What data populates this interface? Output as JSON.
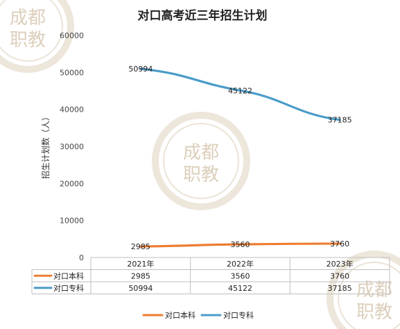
{
  "chart_data": {
    "type": "line",
    "title": "对口高考近三年招生计划",
    "ylabel": "招生计划数（人）",
    "xlabel": "",
    "ylim": [
      0,
      60000
    ],
    "yticks": [
      "0",
      "10000",
      "20000",
      "30000",
      "40000",
      "50000",
      "60000"
    ],
    "categories": [
      "2021年",
      "2022年",
      "2023年"
    ],
    "grid": false,
    "legend_position": "bottom",
    "series": [
      {
        "name": "对口本科",
        "values": [
          2985,
          3560,
          3760
        ],
        "labels": [
          "2985",
          "3560",
          "3760"
        ],
        "color": "#ed7d31"
      },
      {
        "name": "对口专科",
        "values": [
          50994,
          45122,
          37185
        ],
        "labels": [
          "50994",
          "45122",
          "37185"
        ],
        "color": "#4a9cc9"
      }
    ]
  },
  "watermark": {
    "text_top": "成都",
    "text_bottom": "职教",
    "color": "#d7c7b0"
  }
}
